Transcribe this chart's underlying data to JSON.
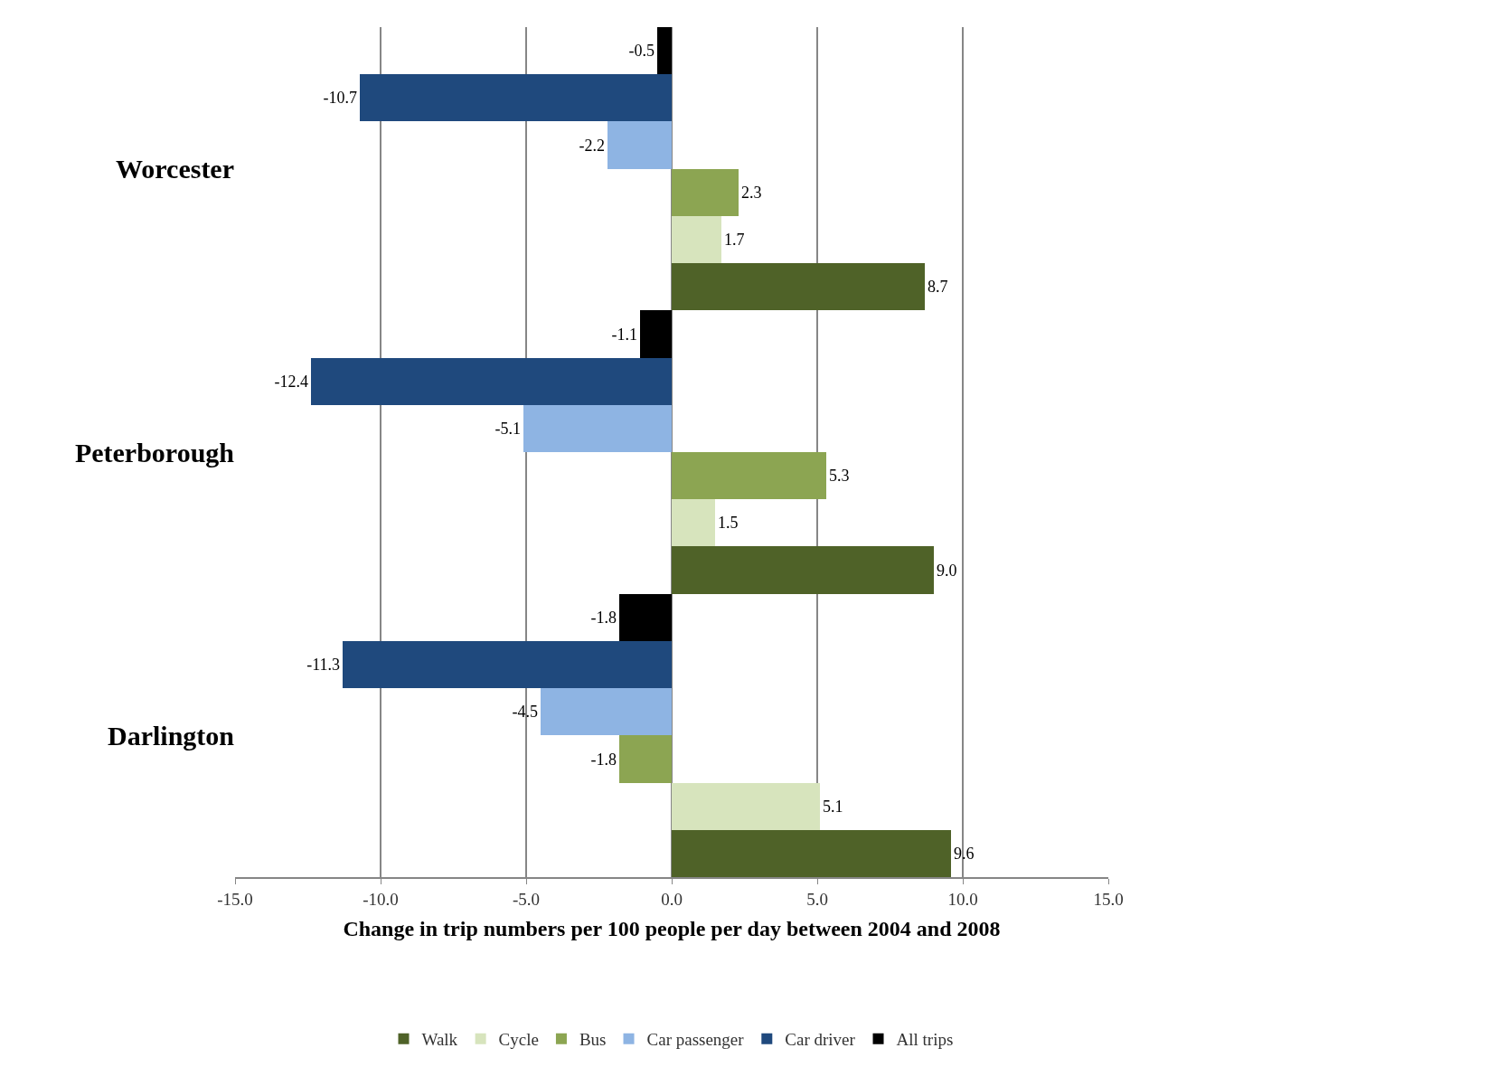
{
  "chart_data": {
    "type": "bar",
    "orientation": "horizontal",
    "xlabel": "Change in trip numbers per 100 people per day between 2004 and 2008",
    "categories": [
      "Worcester",
      "Peterborough",
      "Darlington"
    ],
    "series": [
      {
        "name": "Walk",
        "color": "#4f6228",
        "values": [
          8.7,
          9.0,
          9.6
        ],
        "value_labels": [
          "8.7",
          "9.0",
          "9.6"
        ]
      },
      {
        "name": "Cycle",
        "color": "#d7e4bd",
        "values": [
          1.7,
          1.5,
          5.1
        ],
        "value_labels": [
          "1.7",
          "1.5",
          "5.1"
        ]
      },
      {
        "name": "Bus",
        "color": "#8ca552",
        "values": [
          2.3,
          5.3,
          -1.8
        ],
        "value_labels": [
          "2.3",
          "5.3",
          "-1.8"
        ]
      },
      {
        "name": "Car passenger",
        "color": "#8eb4e3",
        "values": [
          -2.2,
          -5.1,
          -4.5
        ],
        "value_labels": [
          "-2.2",
          "-5.1",
          "-4.5"
        ]
      },
      {
        "name": "Car driver",
        "color": "#1f497d",
        "values": [
          -10.7,
          -12.4,
          -11.3
        ],
        "value_labels": [
          "-10.7",
          "-12.4",
          "-11.3"
        ]
      },
      {
        "name": "All trips",
        "color": "#000000",
        "values": [
          -0.5,
          -1.1,
          -1.8
        ],
        "value_labels": [
          "-0.5",
          "-1.1",
          "-1.8"
        ]
      }
    ],
    "xlim": [
      -15,
      15
    ],
    "xticks": [
      {
        "value": -15,
        "label": "-15.0"
      },
      {
        "value": -10,
        "label": "-10.0"
      },
      {
        "value": -5,
        "label": "-5.0"
      },
      {
        "value": 0,
        "label": "0.0"
      },
      {
        "value": 5,
        "label": "5.0"
      },
      {
        "value": 10,
        "label": "10.0"
      },
      {
        "value": 15,
        "label": "15.0"
      }
    ],
    "grid": "x",
    "legend": "bottom"
  }
}
